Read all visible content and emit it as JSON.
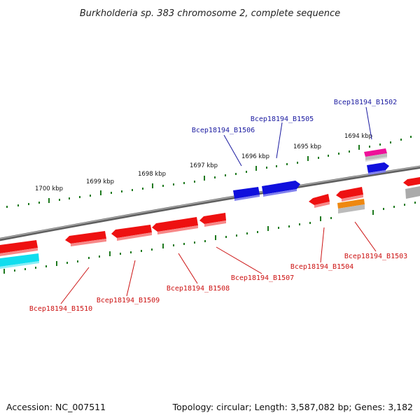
{
  "title": "Burkholderia sp. 383 chromosome 2, complete sequence",
  "footer": {
    "accession": "Accession: NC_007511",
    "summary": "Topology: circular; Length: 3,587,082 bp; Genes: 3,182"
  },
  "scale_labels": [
    "1700 kbp",
    "1699 kbp",
    "1698 kbp",
    "1697 kbp",
    "1696 kbp",
    "1695 kbp",
    "1694 kbp"
  ],
  "gene_labels": {
    "forward": [
      "Bcep18194_B1502",
      "Bcep18194_B1505",
      "Bcep18194_B1506"
    ],
    "reverse": [
      "Bcep18194_B1503",
      "Bcep18194_B1504",
      "Bcep18194_B1507",
      "Bcep18194_B1508",
      "Bcep18194_B1509",
      "Bcep18194_B1510"
    ]
  },
  "colors": {
    "backbone": "#7a7a7a",
    "tick": "#1f7a1f",
    "forward_gene": "#1010dd",
    "reverse_gene": "#ee1111",
    "pink_feature": "#ee1199",
    "cyan_feature": "#11ddee",
    "orange_feature": "#ee8811",
    "gray_feature": "#aaaaaa",
    "forward_label": "#1a1aa0",
    "reverse_label": "#cc1111"
  }
}
